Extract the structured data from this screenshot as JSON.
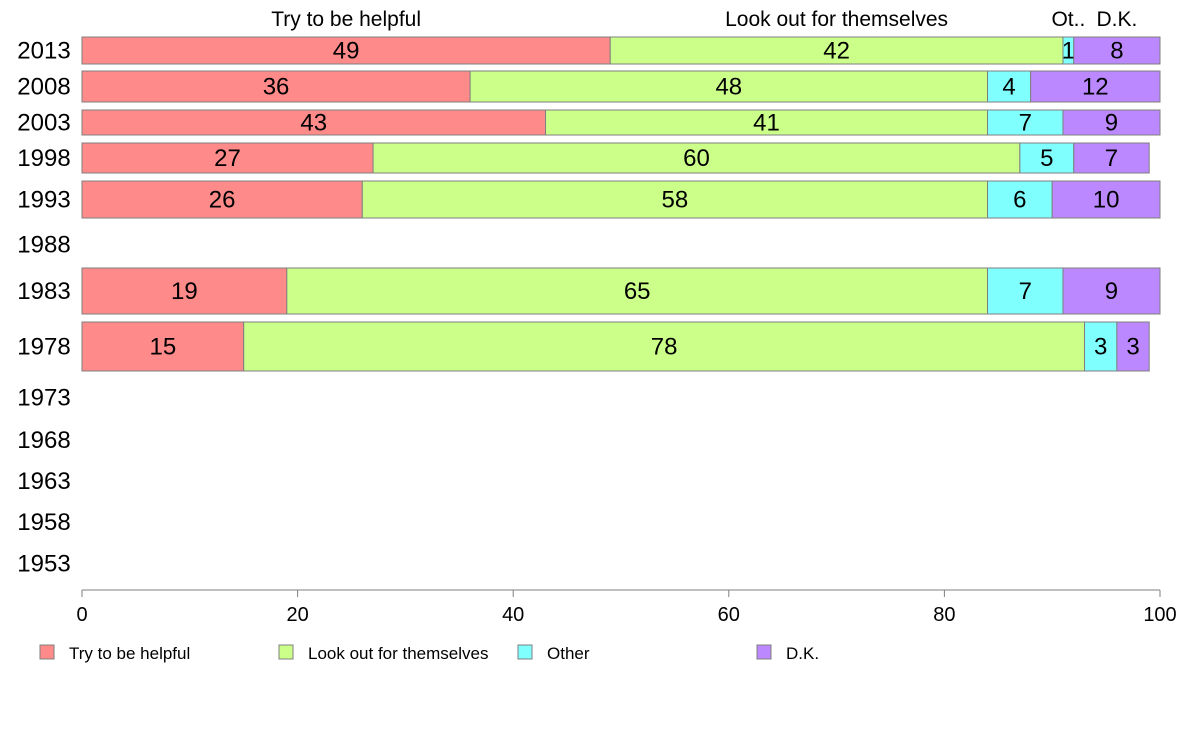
{
  "chart_data": {
    "type": "bar",
    "orientation": "horizontal",
    "stacked": true,
    "categories": [
      "2013",
      "2008",
      "2003",
      "1998",
      "1993",
      "1988",
      "1983",
      "1978",
      "1973",
      "1968",
      "1963",
      "1958",
      "1953"
    ],
    "series": [
      {
        "name": "Try to be helpful",
        "color": "#ff8a8a",
        "values": [
          49,
          36,
          43,
          27,
          26,
          null,
          19,
          15,
          null,
          null,
          null,
          null,
          null
        ]
      },
      {
        "name": "Look out for themselves",
        "color": "#ccff8a",
        "values": [
          42,
          48,
          41,
          60,
          58,
          null,
          65,
          78,
          null,
          null,
          null,
          null,
          null
        ]
      },
      {
        "name": "Other",
        "color": "#80ffff",
        "values": [
          1,
          4,
          7,
          5,
          6,
          null,
          7,
          3,
          null,
          null,
          null,
          null,
          null
        ]
      },
      {
        "name": "D.K.",
        "color": "#bb88ff",
        "values": [
          8,
          12,
          9,
          7,
          10,
          null,
          9,
          3,
          null,
          null,
          null,
          null,
          null
        ]
      }
    ],
    "column_headers": [
      "Try to be helpful",
      "Look out for themselves",
      "Ot..",
      "D.K."
    ],
    "xlim": [
      0,
      100
    ],
    "x_ticks": [
      "0",
      "20",
      "40",
      "60",
      "80",
      "100"
    ],
    "legend_position": "bottom",
    "grid": false
  }
}
